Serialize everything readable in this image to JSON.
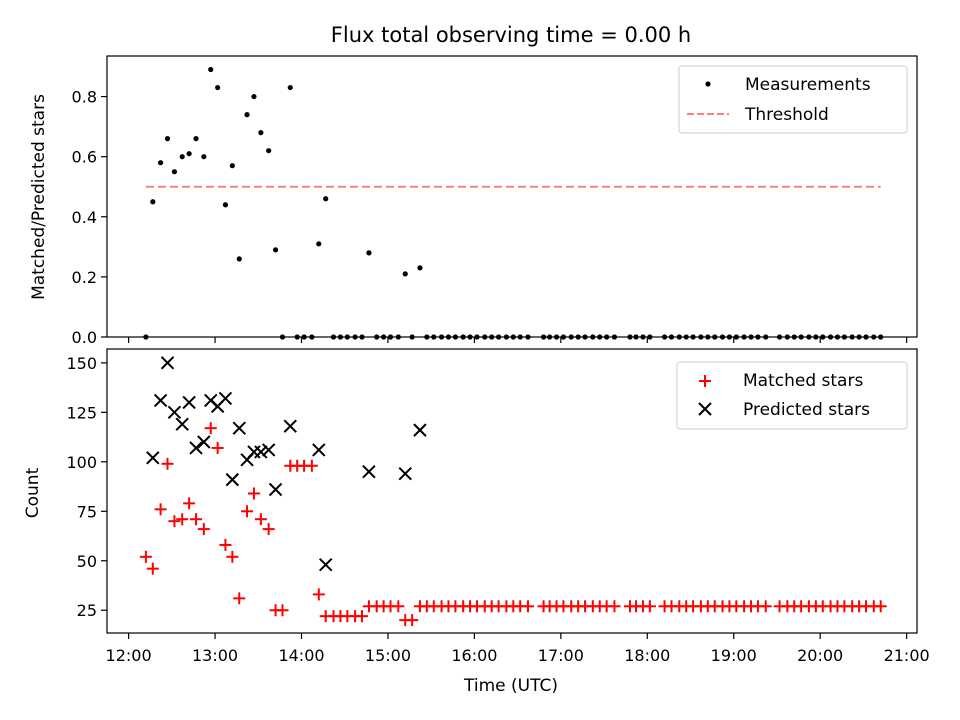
{
  "chart_data": [
    {
      "type": "scatter",
      "title": "Flux total observing time = 0.00 h",
      "xlabel": "",
      "ylabel": "Matched/Predicted stars",
      "xlim": [
        11.75,
        21.12
      ],
      "ylim": [
        0.0,
        0.935
      ],
      "xticks": [
        12,
        13,
        14,
        15,
        16,
        17,
        18,
        19,
        20,
        21
      ],
      "yticks": [
        0.0,
        0.2,
        0.4,
        0.6,
        0.8
      ],
      "ytick_labels": [
        "0.0",
        "0.2",
        "0.4",
        "0.6",
        "0.8"
      ],
      "legend": {
        "position": "top-right",
        "entries": [
          "Measurements",
          "Threshold"
        ]
      },
      "threshold": {
        "name": "Threshold",
        "y": 0.5,
        "x_range": [
          12.2,
          20.7
        ],
        "color": "#ff7f7f",
        "style": "dashed"
      },
      "series": [
        {
          "name": "Measurements",
          "color": "#000000",
          "marker": "dot",
          "points": [
            [
              12.2,
              0.0
            ],
            [
              12.28,
              0.45
            ],
            [
              12.37,
              0.58
            ],
            [
              12.45,
              0.66
            ],
            [
              12.53,
              0.55
            ],
            [
              12.62,
              0.6
            ],
            [
              12.7,
              0.61
            ],
            [
              12.78,
              0.66
            ],
            [
              12.87,
              0.6
            ],
            [
              12.95,
              0.89
            ],
            [
              13.03,
              0.83
            ],
            [
              13.12,
              0.44
            ],
            [
              13.2,
              0.57
            ],
            [
              13.28,
              0.26
            ],
            [
              13.37,
              0.74
            ],
            [
              13.45,
              0.8
            ],
            [
              13.53,
              0.68
            ],
            [
              13.62,
              0.62
            ],
            [
              13.7,
              0.29
            ],
            [
              13.78,
              0.0
            ],
            [
              13.87,
              0.83
            ],
            [
              13.95,
              0.0
            ],
            [
              14.03,
              0.0
            ],
            [
              14.12,
              0.0
            ],
            [
              14.2,
              0.31
            ],
            [
              14.28,
              0.46
            ],
            [
              14.37,
              0.0
            ],
            [
              14.45,
              0.0
            ],
            [
              14.53,
              0.0
            ],
            [
              14.62,
              0.0
            ],
            [
              14.7,
              0.0
            ],
            [
              14.78,
              0.28
            ],
            [
              14.87,
              0.0
            ],
            [
              14.95,
              0.0
            ],
            [
              15.03,
              0.0
            ],
            [
              15.12,
              0.0
            ],
            [
              15.2,
              0.21
            ],
            [
              15.28,
              0.0
            ],
            [
              15.37,
              0.23
            ],
            [
              15.45,
              0.0
            ],
            [
              15.53,
              0.0
            ],
            [
              15.62,
              0.0
            ],
            [
              15.7,
              0.0
            ],
            [
              15.78,
              0.0
            ],
            [
              15.87,
              0.0
            ],
            [
              15.95,
              0.0
            ],
            [
              16.03,
              0.0
            ],
            [
              16.12,
              0.0
            ],
            [
              16.2,
              0.0
            ],
            [
              16.28,
              0.0
            ],
            [
              16.37,
              0.0
            ],
            [
              16.45,
              0.0
            ],
            [
              16.53,
              0.0
            ],
            [
              16.62,
              0.0
            ],
            [
              16.8,
              0.0
            ],
            [
              16.87,
              0.0
            ],
            [
              16.95,
              0.0
            ],
            [
              17.03,
              0.0
            ],
            [
              17.12,
              0.0
            ],
            [
              17.2,
              0.0
            ],
            [
              17.28,
              0.0
            ],
            [
              17.37,
              0.0
            ],
            [
              17.45,
              0.0
            ],
            [
              17.53,
              0.0
            ],
            [
              17.62,
              0.0
            ],
            [
              17.8,
              0.0
            ],
            [
              17.87,
              0.0
            ],
            [
              17.95,
              0.0
            ],
            [
              18.03,
              0.0
            ],
            [
              18.2,
              0.0
            ],
            [
              18.28,
              0.0
            ],
            [
              18.37,
              0.0
            ],
            [
              18.45,
              0.0
            ],
            [
              18.53,
              0.0
            ],
            [
              18.62,
              0.0
            ],
            [
              18.7,
              0.0
            ],
            [
              18.78,
              0.0
            ],
            [
              18.87,
              0.0
            ],
            [
              18.95,
              0.0
            ],
            [
              19.03,
              0.0
            ],
            [
              19.12,
              0.0
            ],
            [
              19.2,
              0.0
            ],
            [
              19.28,
              0.0
            ],
            [
              19.37,
              0.0
            ],
            [
              19.53,
              0.0
            ],
            [
              19.62,
              0.0
            ],
            [
              19.7,
              0.0
            ],
            [
              19.78,
              0.0
            ],
            [
              19.87,
              0.0
            ],
            [
              19.95,
              0.0
            ],
            [
              20.03,
              0.0
            ],
            [
              20.12,
              0.0
            ],
            [
              20.2,
              0.0
            ],
            [
              20.28,
              0.0
            ],
            [
              20.37,
              0.0
            ],
            [
              20.45,
              0.0
            ],
            [
              20.53,
              0.0
            ],
            [
              20.62,
              0.0
            ],
            [
              20.7,
              0.0
            ]
          ]
        }
      ]
    },
    {
      "type": "scatter",
      "title": "",
      "xlabel": "Time (UTC)",
      "ylabel": "Count",
      "xlim": [
        11.75,
        21.12
      ],
      "ylim": [
        13.5,
        157.0
      ],
      "xticks": [
        12,
        13,
        14,
        15,
        16,
        17,
        18,
        19,
        20,
        21
      ],
      "xtick_labels": [
        "12:00",
        "13:00",
        "14:00",
        "15:00",
        "16:00",
        "17:00",
        "18:00",
        "19:00",
        "20:00",
        "21:00"
      ],
      "yticks": [
        25,
        50,
        75,
        100,
        125,
        150
      ],
      "ytick_labels": [
        "25",
        "50",
        "75",
        "100",
        "125",
        "150"
      ],
      "legend": {
        "position": "top-right",
        "entries": [
          "Matched stars",
          "Predicted stars"
        ]
      },
      "series": [
        {
          "name": "Matched stars",
          "color": "#ff0000",
          "marker": "plus",
          "points": [
            [
              12.2,
              52
            ],
            [
              12.28,
              46
            ],
            [
              12.37,
              76
            ],
            [
              12.45,
              99
            ],
            [
              12.53,
              70
            ],
            [
              12.62,
              71
            ],
            [
              12.7,
              79
            ],
            [
              12.78,
              71
            ],
            [
              12.87,
              66
            ],
            [
              12.95,
              117
            ],
            [
              13.03,
              107
            ],
            [
              13.12,
              58
            ],
            [
              13.2,
              52
            ],
            [
              13.28,
              31
            ],
            [
              13.37,
              75
            ],
            [
              13.45,
              84
            ],
            [
              13.53,
              71
            ],
            [
              13.62,
              66
            ],
            [
              13.7,
              25
            ],
            [
              13.78,
              25
            ],
            [
              13.87,
              98
            ],
            [
              13.95,
              98
            ],
            [
              14.03,
              98
            ],
            [
              14.12,
              98
            ],
            [
              14.2,
              33
            ],
            [
              14.28,
              22
            ],
            [
              14.37,
              22
            ],
            [
              14.45,
              22
            ],
            [
              14.53,
              22
            ],
            [
              14.62,
              22
            ],
            [
              14.7,
              22
            ],
            [
              14.78,
              27
            ],
            [
              14.87,
              27
            ],
            [
              14.95,
              27
            ],
            [
              15.03,
              27
            ],
            [
              15.12,
              27
            ],
            [
              15.2,
              20
            ],
            [
              15.28,
              20
            ],
            [
              15.37,
              27
            ],
            [
              15.45,
              27
            ],
            [
              15.53,
              27
            ],
            [
              15.62,
              27
            ],
            [
              15.7,
              27
            ],
            [
              15.78,
              27
            ],
            [
              15.87,
              27
            ],
            [
              15.95,
              27
            ],
            [
              16.03,
              27
            ],
            [
              16.12,
              27
            ],
            [
              16.2,
              27
            ],
            [
              16.28,
              27
            ],
            [
              16.37,
              27
            ],
            [
              16.45,
              27
            ],
            [
              16.53,
              27
            ],
            [
              16.62,
              27
            ],
            [
              16.8,
              27
            ],
            [
              16.87,
              27
            ],
            [
              16.95,
              27
            ],
            [
              17.03,
              27
            ],
            [
              17.12,
              27
            ],
            [
              17.2,
              27
            ],
            [
              17.28,
              27
            ],
            [
              17.37,
              27
            ],
            [
              17.45,
              27
            ],
            [
              17.53,
              27
            ],
            [
              17.62,
              27
            ],
            [
              17.8,
              27
            ],
            [
              17.87,
              27
            ],
            [
              17.95,
              27
            ],
            [
              18.03,
              27
            ],
            [
              18.2,
              27
            ],
            [
              18.28,
              27
            ],
            [
              18.37,
              27
            ],
            [
              18.45,
              27
            ],
            [
              18.53,
              27
            ],
            [
              18.62,
              27
            ],
            [
              18.7,
              27
            ],
            [
              18.78,
              27
            ],
            [
              18.87,
              27
            ],
            [
              18.95,
              27
            ],
            [
              19.03,
              27
            ],
            [
              19.12,
              27
            ],
            [
              19.2,
              27
            ],
            [
              19.28,
              27
            ],
            [
              19.37,
              27
            ],
            [
              19.53,
              27
            ],
            [
              19.62,
              27
            ],
            [
              19.7,
              27
            ],
            [
              19.78,
              27
            ],
            [
              19.87,
              27
            ],
            [
              19.95,
              27
            ],
            [
              20.03,
              27
            ],
            [
              20.12,
              27
            ],
            [
              20.2,
              27
            ],
            [
              20.28,
              27
            ],
            [
              20.37,
              27
            ],
            [
              20.45,
              27
            ],
            [
              20.53,
              27
            ],
            [
              20.62,
              27
            ],
            [
              20.7,
              27
            ]
          ]
        },
        {
          "name": "Predicted stars",
          "color": "#000000",
          "marker": "x",
          "points": [
            [
              12.28,
              102
            ],
            [
              12.37,
              131
            ],
            [
              12.45,
              150
            ],
            [
              12.53,
              125
            ],
            [
              12.62,
              119
            ],
            [
              12.7,
              130
            ],
            [
              12.78,
              107
            ],
            [
              12.87,
              110
            ],
            [
              12.95,
              131
            ],
            [
              13.03,
              128
            ],
            [
              13.12,
              132
            ],
            [
              13.2,
              91
            ],
            [
              13.28,
              117
            ],
            [
              13.37,
              101
            ],
            [
              13.45,
              105
            ],
            [
              13.53,
              105
            ],
            [
              13.62,
              106
            ],
            [
              13.7,
              86
            ],
            [
              13.87,
              118
            ],
            [
              14.2,
              106
            ],
            [
              14.28,
              48
            ],
            [
              14.78,
              95
            ],
            [
              15.2,
              94
            ],
            [
              15.37,
              116
            ]
          ]
        }
      ]
    }
  ]
}
